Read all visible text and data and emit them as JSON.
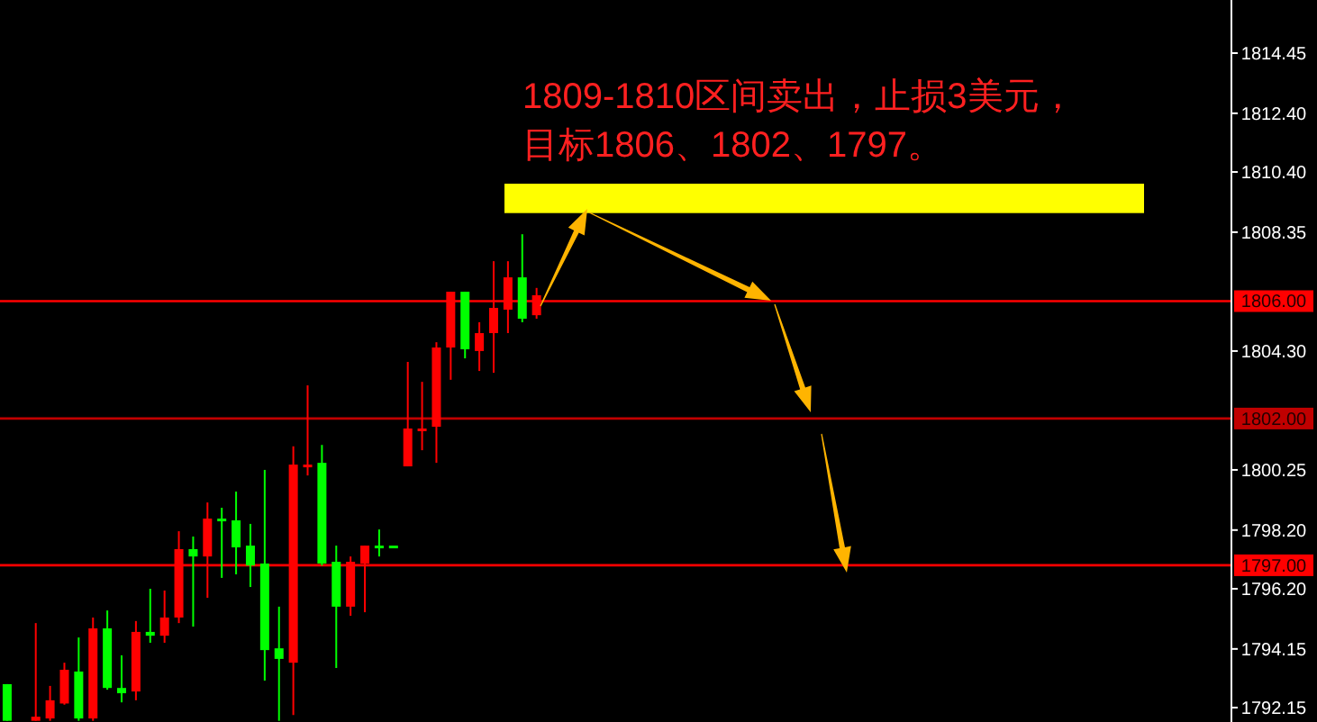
{
  "chart_data": {
    "type": "candlestick",
    "categories": [
      null,
      null,
      null,
      null,
      null,
      null,
      null,
      null,
      null,
      null,
      null,
      null,
      null,
      null,
      null,
      null,
      null,
      null,
      null,
      null,
      null,
      null,
      null,
      null,
      null,
      null,
      null,
      null,
      null,
      null,
      null,
      null,
      null,
      null,
      null,
      null,
      null,
      null,
      null,
      null,
      null,
      null,
      null,
      null,
      null,
      null,
      null,
      null,
      null,
      null,
      null,
      null,
      null,
      null,
      null,
      null,
      null,
      null,
      null,
      null,
      null,
      null,
      null,
      null,
      null,
      null,
      null,
      null,
      null,
      null,
      null,
      null,
      null,
      null,
      null,
      null,
      null,
      null,
      null,
      null,
      null,
      null,
      null,
      null,
      null,
      null
    ],
    "ohlc": [
      [
        1791.7,
        1792.95,
        1791.7,
        1792.95
      ],
      null,
      [
        1791.84,
        1795.03,
        1791.7,
        1791.7
      ],
      [
        1792.4,
        1792.89,
        1791.7,
        1791.78
      ],
      [
        1793.44,
        1793.68,
        1792.25,
        1792.29
      ],
      [
        1791.78,
        1794.54,
        1791.7,
        1793.38
      ],
      [
        1794.85,
        1795.22,
        1791.7,
        1791.78
      ],
      [
        1792.82,
        1795.46,
        1792.76,
        1794.85
      ],
      [
        1792.64,
        1793.93,
        1792.33,
        1792.82
      ],
      [
        1794.73,
        1795.1,
        1792.4,
        1792.7
      ],
      [
        1794.6,
        1796.2,
        1794.36,
        1794.73
      ],
      [
        1795.22,
        1796.14,
        1794.36,
        1794.6
      ],
      [
        1797.55,
        1798.16,
        1795.03,
        1795.22
      ],
      [
        1797.3,
        1797.98,
        1794.91,
        1797.55
      ],
      [
        1798.59,
        1799.14,
        1795.89,
        1797.3
      ],
      [
        1798.53,
        1798.96,
        1796.57,
        1798.59
      ],
      [
        1797.61,
        1799.51,
        1796.69,
        1798.53
      ],
      [
        1796.99,
        1798.41,
        1796.26,
        1797.67
      ],
      [
        1794.11,
        1800.25,
        1793.07,
        1797.06
      ],
      [
        1793.81,
        1795.59,
        1791.7,
        1794.17
      ],
      [
        1800.43,
        1801.05,
        1791.9,
        1793.68
      ],
      [
        1800.43,
        1803.13,
        1800.06,
        1800.37
      ],
      [
        1797.06,
        1801.1,
        1796.99,
        1800.49
      ],
      [
        1795.59,
        1797.67,
        1793.5,
        1797.12
      ],
      [
        1797.12,
        1797.3,
        1795.28,
        1795.59
      ],
      [
        1797.67,
        1797.67,
        1795.4,
        1797.06
      ],
      [
        1797.61,
        1798.22,
        1797.3,
        1797.67
      ],
      [
        1797.67,
        1797.67,
        1797.67,
        1797.67
      ],
      [
        1801.66,
        1803.93,
        1800.37,
        1800.37
      ],
      [
        1801.66,
        1803.25,
        1800.92,
        1801.6
      ],
      [
        1804.42,
        1804.6,
        1800.49,
        1801.72
      ],
      [
        1806.32,
        1806.32,
        1803.32,
        1804.42
      ],
      [
        1804.36,
        1806.32,
        1804.05,
        1806.32
      ],
      [
        1804.91,
        1805.28,
        1803.62,
        1804.3
      ],
      [
        1805.77,
        1807.36,
        1803.56,
        1804.91
      ],
      [
        1806.81,
        1807.36,
        1804.91,
        1805.71
      ],
      [
        1805.4,
        1808.28,
        1805.28,
        1806.81
      ],
      [
        1806.2,
        1806.45,
        1805.4,
        1805.52
      ],
      null,
      null,
      null,
      null,
      null,
      null,
      null,
      null,
      null,
      null,
      null,
      null,
      null,
      null,
      null,
      null,
      null,
      null,
      null,
      null,
      null,
      null,
      null,
      null,
      null,
      null,
      null,
      null,
      null,
      null,
      null,
      null,
      null,
      null,
      null,
      null,
      null,
      null,
      null,
      null,
      null,
      null,
      null,
      null,
      null,
      null,
      null,
      null
    ],
    "colors": [
      "#00ff00",
      null,
      "#ff0000",
      "#ff0000",
      "#ff0000",
      "#00ff00",
      "#ff0000",
      "#00ff00",
      "#00ff00",
      "#ff0000",
      "#00ff00",
      "#ff0000",
      "#ff0000",
      "#00ff00",
      "#ff0000",
      "#00ff00",
      "#00ff00",
      "#00ff00",
      "#00ff00",
      "#00ff00",
      "#ff0000",
      "#ff0000",
      "#00ff00",
      "#00ff00",
      "#ff0000",
      "#ff0000",
      "#00ff00",
      "#00ff00",
      "#ff0000",
      "#ff0000",
      "#ff0000",
      "#ff0000",
      "#00ff00",
      "#ff0000",
      "#ff0000",
      "#ff0000",
      "#00ff00",
      "#ff0000",
      null,
      null,
      null,
      null,
      null,
      null,
      null,
      null,
      null,
      null,
      null,
      null,
      null,
      null,
      null,
      null,
      null,
      null,
      null,
      null,
      null,
      null,
      null,
      null,
      null,
      null,
      null,
      null,
      null,
      null,
      null,
      null,
      null,
      null,
      null,
      null,
      null,
      null,
      null,
      null,
      null,
      null,
      null,
      null,
      null,
      null,
      null,
      null
    ],
    "ylim": [
      1791.66,
      1816.26
    ],
    "yticks": [
      {
        "value": 1792.15,
        "label": "1792.15"
      },
      {
        "value": 1794.15,
        "label": "1794.15"
      },
      {
        "value": 1796.2,
        "label": "1796.20"
      },
      {
        "value": 1798.2,
        "label": "1798.20"
      },
      {
        "value": 1800.25,
        "label": "1800.25"
      },
      {
        "value": 1804.3,
        "label": "1804.30"
      },
      {
        "value": 1808.35,
        "label": "1808.35"
      },
      {
        "value": 1810.4,
        "label": "1810.40"
      },
      {
        "value": 1812.4,
        "label": "1812.40"
      },
      {
        "value": 1814.45,
        "label": "1814.45"
      }
    ],
    "tick_labels": "y",
    "ref_lines": [
      {
        "axis": "y",
        "value": 1806,
        "label": "1806.00",
        "color": "#ff0000"
      },
      {
        "axis": "y",
        "value": 1802,
        "label": "1802.00",
        "color": "#c00000"
      },
      {
        "axis": "y",
        "value": 1797,
        "label": "1797.00",
        "color": "#ff0000"
      }
    ],
    "bands": [
      {
        "axis": "y",
        "from": 1809,
        "to": 1810,
        "color": "#ffff00"
      }
    ],
    "annotations": [
      "1809-1810区间卖出，止损3美元，",
      "目标1806、1802、1797。"
    ]
  }
}
